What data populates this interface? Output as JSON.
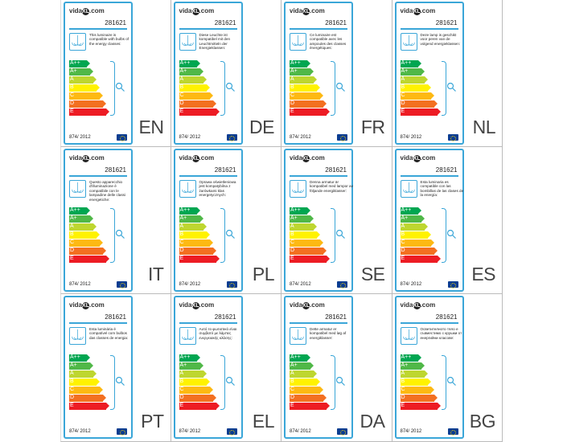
{
  "brand": {
    "logo_text_left": "vida",
    "logo_text_mark": "XL",
    "logo_text_right": ".com"
  },
  "product_code": "281621",
  "regulation": "874/ 2012",
  "energy_classes": [
    {
      "label": "A++",
      "color": "#00a651"
    },
    {
      "label": "A+",
      "color": "#50b848"
    },
    {
      "label": "A",
      "color": "#bed630"
    },
    {
      "label": "B",
      "color": "#fff200"
    },
    {
      "label": "C",
      "color": "#fdb913"
    },
    {
      "label": "D",
      "color": "#f37021"
    },
    {
      "label": "E",
      "color": "#ed1c24"
    }
  ],
  "labels": [
    {
      "lang": "EN",
      "text": "This luminaire is compatible with bulbs of the energy classes:"
    },
    {
      "lang": "DE",
      "text": "Diese Leuchte ist kompatibel mit den Leuchtmitteln der Energieklassen:"
    },
    {
      "lang": "FR",
      "text": "Ce luminaire est compatible avec les ampoules des classes énergétiques:"
    },
    {
      "lang": "NL",
      "text": "Deze lamp is geschikt voor peren van de volgend energieklassen:"
    },
    {
      "lang": "IT",
      "text": "Questo apparecchio d'illuminazione è compatibile con le lampadine delle classi energetiche:"
    },
    {
      "lang": "PL",
      "text": "Oprawa oświetleniowa jest kompatybilna z żarówkami klas energetycznych:"
    },
    {
      "lang": "SE",
      "text": "Denna armatur är kompatibel med lampor av följande energiklasser:"
    },
    {
      "lang": "ES",
      "text": "Esta luminaria es compatible con las bombillas de las clases de la energía:"
    },
    {
      "lang": "PT",
      "text": "Esta luminária é compatível com bulbos das classes de energia:"
    },
    {
      "lang": "EL",
      "text": "Αυτό το φωτιστικό είναι συμβατό με λάμπες ενεργειακής κλάσης:"
    },
    {
      "lang": "DA",
      "text": "Dette armatur er kompatibel med løg af energiklasser:"
    },
    {
      "lang": "BG",
      "text": "Осветителното тяло е съвместимо с крушки от енергийни класове:"
    }
  ]
}
